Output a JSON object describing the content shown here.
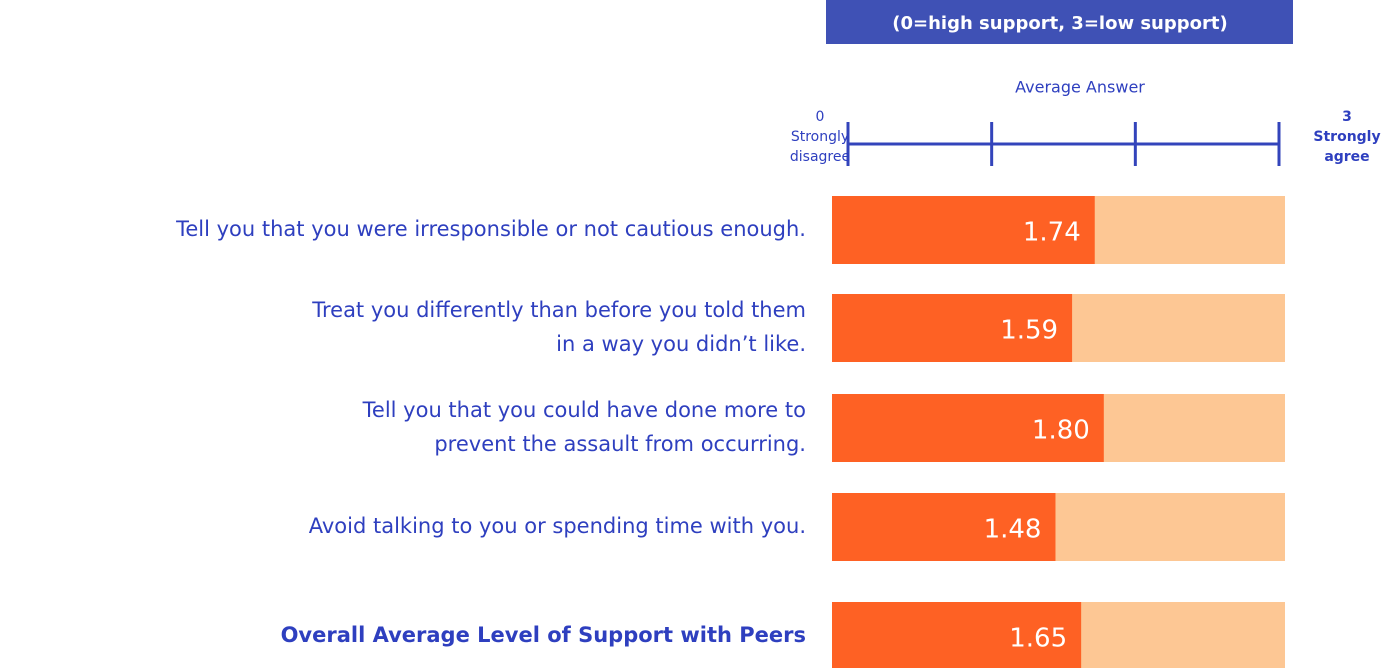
{
  "chart_data": {
    "type": "bar",
    "orientation": "horizontal",
    "subtitle": "(0=high support, 3=low support)",
    "xlabel": "Average Answer",
    "categories": [
      [
        "Tell you that you were irresponsible or not cautious enough."
      ],
      [
        "Treat you differently than before you told them",
        "in a way you didn’t like."
      ],
      [
        "Tell you that you could have done more to",
        "prevent the assault from occurring."
      ],
      [
        "Avoid talking to you or spending time with you."
      ],
      [
        "Overall Average Level of Support with Peers"
      ]
    ],
    "values": [
      1.74,
      1.59,
      1.8,
      1.48,
      1.65
    ],
    "value_labels": [
      "1.74",
      "1.59",
      "1.80",
      "1.48",
      "1.65"
    ],
    "color": "#fe6124",
    "background_color": "#fdc794",
    "xlim": [
      0,
      3
    ],
    "xticks": [
      0,
      1,
      2,
      3
    ],
    "xtick_labels": [
      [
        "0",
        "Strongly",
        "disagree"
      ],
      null,
      null,
      [
        "3",
        "Strongly",
        "agree"
      ]
    ]
  }
}
